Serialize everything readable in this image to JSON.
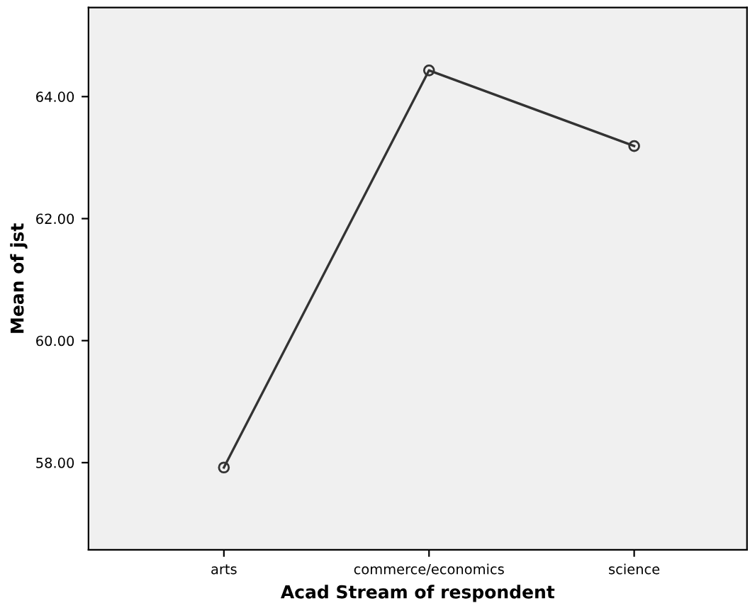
{
  "chart_data": {
    "type": "line",
    "xlabel": "Acad Stream of respondent",
    "ylabel": "Mean of jst",
    "categories": [
      "arts",
      "commerce/economics",
      "science"
    ],
    "series": [
      {
        "color": "#333333",
        "values": [
          57.92,
          64.43,
          63.19
        ]
      }
    ],
    "ylim": [
      56.57,
      65.46
    ],
    "yticks": [
      {
        "value": 58,
        "label": "58.00"
      },
      {
        "value": 60,
        "label": "60.00"
      },
      {
        "value": 62,
        "label": "62.00"
      },
      {
        "value": 64,
        "label": "64.00"
      }
    ],
    "marker": "circle",
    "line_style": "solid",
    "grid": false,
    "legend": false
  }
}
